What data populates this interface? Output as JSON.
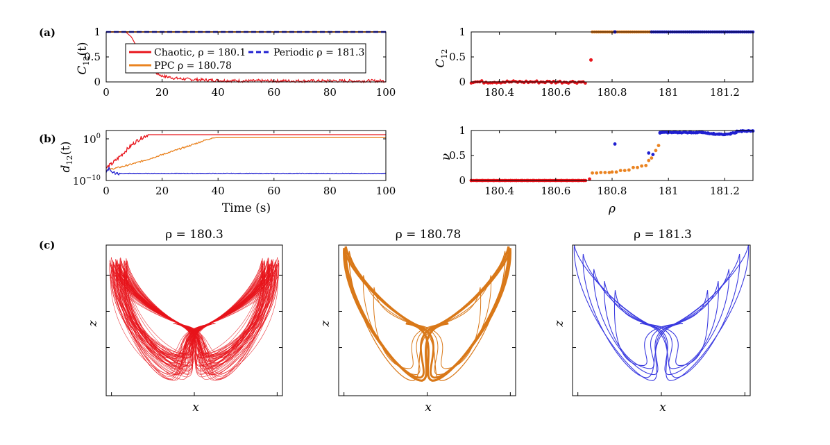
{
  "panel_labels": {
    "a": "(a)",
    "b": "(b)",
    "c": "(c)"
  },
  "colors": {
    "chaotic": "#e8141b",
    "ppc": "#ea8320",
    "periodic": "#1f1fd0",
    "attractor_ppc": "#d97818",
    "attractor_periodic": "#3a3ae0"
  },
  "chart_data": [
    {
      "id": "a_left",
      "type": "line",
      "ylabel": "C12(t)",
      "ylabel_main": "C",
      "ylabel_sub": "12",
      "ylabel_tail": "(t)",
      "xlim": [
        0,
        100
      ],
      "ylim": [
        0,
        1
      ],
      "xticks": [
        "0",
        "20",
        "40",
        "60",
        "80",
        "100"
      ],
      "yticks": [
        "0",
        "0.5",
        "1"
      ],
      "series": [
        {
          "name": "Chaotic, ρ = 180.1",
          "color": "#e8141b",
          "style": "solid",
          "x": [
            0,
            7,
            9,
            11,
            14,
            17,
            20,
            25,
            30,
            40,
            50,
            60,
            70,
            80,
            90,
            100
          ],
          "values": [
            1,
            1,
            0.9,
            0.7,
            0.4,
            0.2,
            0.12,
            0.07,
            0.05,
            0.03,
            0.02,
            0.02,
            0.02,
            0.02,
            0.02,
            0.02
          ]
        },
        {
          "name": "Periodic ρ = 181.3",
          "color": "#1f1fd0",
          "style": "dashed",
          "x": [
            0,
            100
          ],
          "values": [
            1,
            1
          ]
        },
        {
          "name": "PPC ρ = 180.78",
          "color": "#ea8320",
          "style": "solid",
          "x": [
            0,
            100
          ],
          "values": [
            1,
            1
          ]
        }
      ],
      "legend": [
        {
          "label": "Chaotic, ρ = 180.1",
          "color": "#e8141b",
          "style": "solid"
        },
        {
          "label": "Periodic ρ = 181.3",
          "color": "#1f1fd0",
          "style": "dashed"
        },
        {
          "label": "PPC ρ = 180.78",
          "color": "#ea8320",
          "style": "solid"
        }
      ]
    },
    {
      "id": "a_right",
      "type": "scatter",
      "ylabel_main": "C",
      "ylabel_sub": "12",
      "xlim": [
        180.3,
        181.3
      ],
      "ylim": [
        0,
        1
      ],
      "xticks": [
        "180.4",
        "180.6",
        "180.8",
        "181",
        "181.2"
      ],
      "xtick_values": [
        180.4,
        180.6,
        180.8,
        181.0,
        181.2
      ],
      "yticks": [
        "0",
        "0.5",
        "1"
      ],
      "series": [
        {
          "name": "chaotic",
          "color": "#e8141b",
          "x_start": 180.3,
          "x_end": 180.71,
          "value": 0.0,
          "extra": [
            [
              180.725,
              0.44
            ]
          ]
        },
        {
          "name": "ppc",
          "color": "#ea8320",
          "x_start": 180.73,
          "x_end": 180.94,
          "value": 1.0
        },
        {
          "name": "periodic",
          "color": "#1f1fd0",
          "x_start": 180.94,
          "x_end": 181.3,
          "value": 1.0,
          "extra": [
            [
              180.81,
              1.0
            ]
          ]
        }
      ]
    },
    {
      "id": "b_left",
      "type": "line",
      "ylabel_main": "d",
      "ylabel_sub": "12",
      "ylabel_tail": "(t)",
      "xlabel": "Time (s)",
      "xlim": [
        0,
        100
      ],
      "ylim_log10": [
        -10,
        2
      ],
      "xticks": [
        "0",
        "20",
        "40",
        "60",
        "80",
        "100"
      ],
      "yticks": [
        {
          "base": "10",
          "exp": "0",
          "value": 0
        },
        {
          "base": "10",
          "exp": "−10",
          "value": -10
        }
      ],
      "series": [
        {
          "name": "chaotic",
          "color": "#e8141b",
          "x": [
            0,
            2,
            4,
            6,
            8,
            10,
            12,
            14,
            15,
            100
          ],
          "values_log10": [
            -7,
            -6,
            -4.8,
            -3.5,
            -2.2,
            -1,
            0,
            0.7,
            1,
            1
          ]
        },
        {
          "name": "ppc",
          "color": "#ea8320",
          "x": [
            0,
            5,
            10,
            15,
            20,
            25,
            30,
            35,
            38,
            40,
            100
          ],
          "values_log10": [
            -7.5,
            -6.8,
            -5.9,
            -4.9,
            -3.8,
            -2.7,
            -1.6,
            -0.4,
            0.2,
            0.3,
            0.3
          ]
        },
        {
          "name": "periodic",
          "color": "#1f1fd0",
          "x": [
            0,
            1,
            2,
            3,
            4,
            100
          ],
          "values_log10": [
            -7.8,
            -7.2,
            -7.9,
            -8.2,
            -8.3,
            -8.3
          ]
        }
      ]
    },
    {
      "id": "b_right",
      "type": "scatter",
      "ylabel_main": "ν",
      "xlabel": "ρ",
      "xlim": [
        180.3,
        181.3
      ],
      "ylim": [
        0,
        1
      ],
      "xticks": [
        "180.4",
        "180.6",
        "180.8",
        "181",
        "181.2"
      ],
      "xtick_values": [
        180.4,
        180.6,
        180.8,
        181.0,
        181.2
      ],
      "yticks": [
        "0",
        "0.5",
        "1"
      ],
      "series": [
        {
          "name": "chaotic",
          "color": "#e8141b",
          "points": [
            [
              180.3,
              0
            ],
            [
              180.32,
              0
            ],
            [
              180.34,
              0
            ],
            [
              180.36,
              0
            ],
            [
              180.38,
              0
            ],
            [
              180.4,
              0
            ],
            [
              180.42,
              0
            ],
            [
              180.44,
              0
            ],
            [
              180.46,
              0
            ],
            [
              180.48,
              0
            ],
            [
              180.5,
              0
            ],
            [
              180.52,
              0
            ],
            [
              180.54,
              0
            ],
            [
              180.56,
              0
            ],
            [
              180.58,
              0
            ],
            [
              180.6,
              0
            ],
            [
              180.62,
              0
            ],
            [
              180.64,
              0
            ],
            [
              180.66,
              0
            ],
            [
              180.68,
              0
            ],
            [
              180.7,
              0
            ],
            [
              180.72,
              0.03
            ]
          ]
        },
        {
          "name": "ppc",
          "color": "#ea8320",
          "points": [
            [
              180.73,
              0.15
            ],
            [
              180.745,
              0.15
            ],
            [
              180.76,
              0.16
            ],
            [
              180.775,
              0.16
            ],
            [
              180.79,
              0.16
            ],
            [
              180.8,
              0.17
            ],
            [
              180.815,
              0.17
            ],
            [
              180.83,
              0.2
            ],
            [
              180.845,
              0.2
            ],
            [
              180.86,
              0.21
            ],
            [
              180.875,
              0.26
            ],
            [
              180.89,
              0.26
            ],
            [
              180.905,
              0.29
            ],
            [
              180.92,
              0.3
            ],
            [
              180.93,
              0.4
            ],
            [
              180.94,
              0.45
            ],
            [
              180.955,
              0.6
            ],
            [
              180.965,
              0.7
            ]
          ]
        },
        {
          "name": "periodic",
          "color": "#1f1fd0",
          "points": [
            [
              180.81,
              0.73
            ],
            [
              180.93,
              0.55
            ],
            [
              180.945,
              0.52
            ],
            [
              180.97,
              0.95
            ],
            [
              180.98,
              0.97
            ],
            [
              181.0,
              0.97
            ],
            [
              181.02,
              0.97
            ],
            [
              181.04,
              0.96
            ],
            [
              181.06,
              0.97
            ],
            [
              181.08,
              0.96
            ],
            [
              181.1,
              0.96
            ],
            [
              181.12,
              0.96
            ],
            [
              181.14,
              0.95
            ],
            [
              181.16,
              0.94
            ],
            [
              181.18,
              0.93
            ],
            [
              181.2,
              0.92
            ],
            [
              181.22,
              0.93
            ],
            [
              181.24,
              0.96
            ],
            [
              181.26,
              0.98
            ],
            [
              181.28,
              0.99
            ],
            [
              181.3,
              0.99
            ]
          ]
        }
      ]
    },
    {
      "id": "c1",
      "type": "line",
      "title": "ρ = 180.3",
      "xlabel": "x",
      "ylabel": "z",
      "color": "#e8141b",
      "kind": "chaotic"
    },
    {
      "id": "c2",
      "type": "line",
      "title": "ρ = 180.78",
      "xlabel": "x",
      "ylabel": "z",
      "color": "#d97818",
      "kind": "ppc"
    },
    {
      "id": "c3",
      "type": "line",
      "title": "ρ = 181.3",
      "xlabel": "x",
      "ylabel": "z",
      "color": "#3a3ae0",
      "kind": "periodic"
    }
  ]
}
